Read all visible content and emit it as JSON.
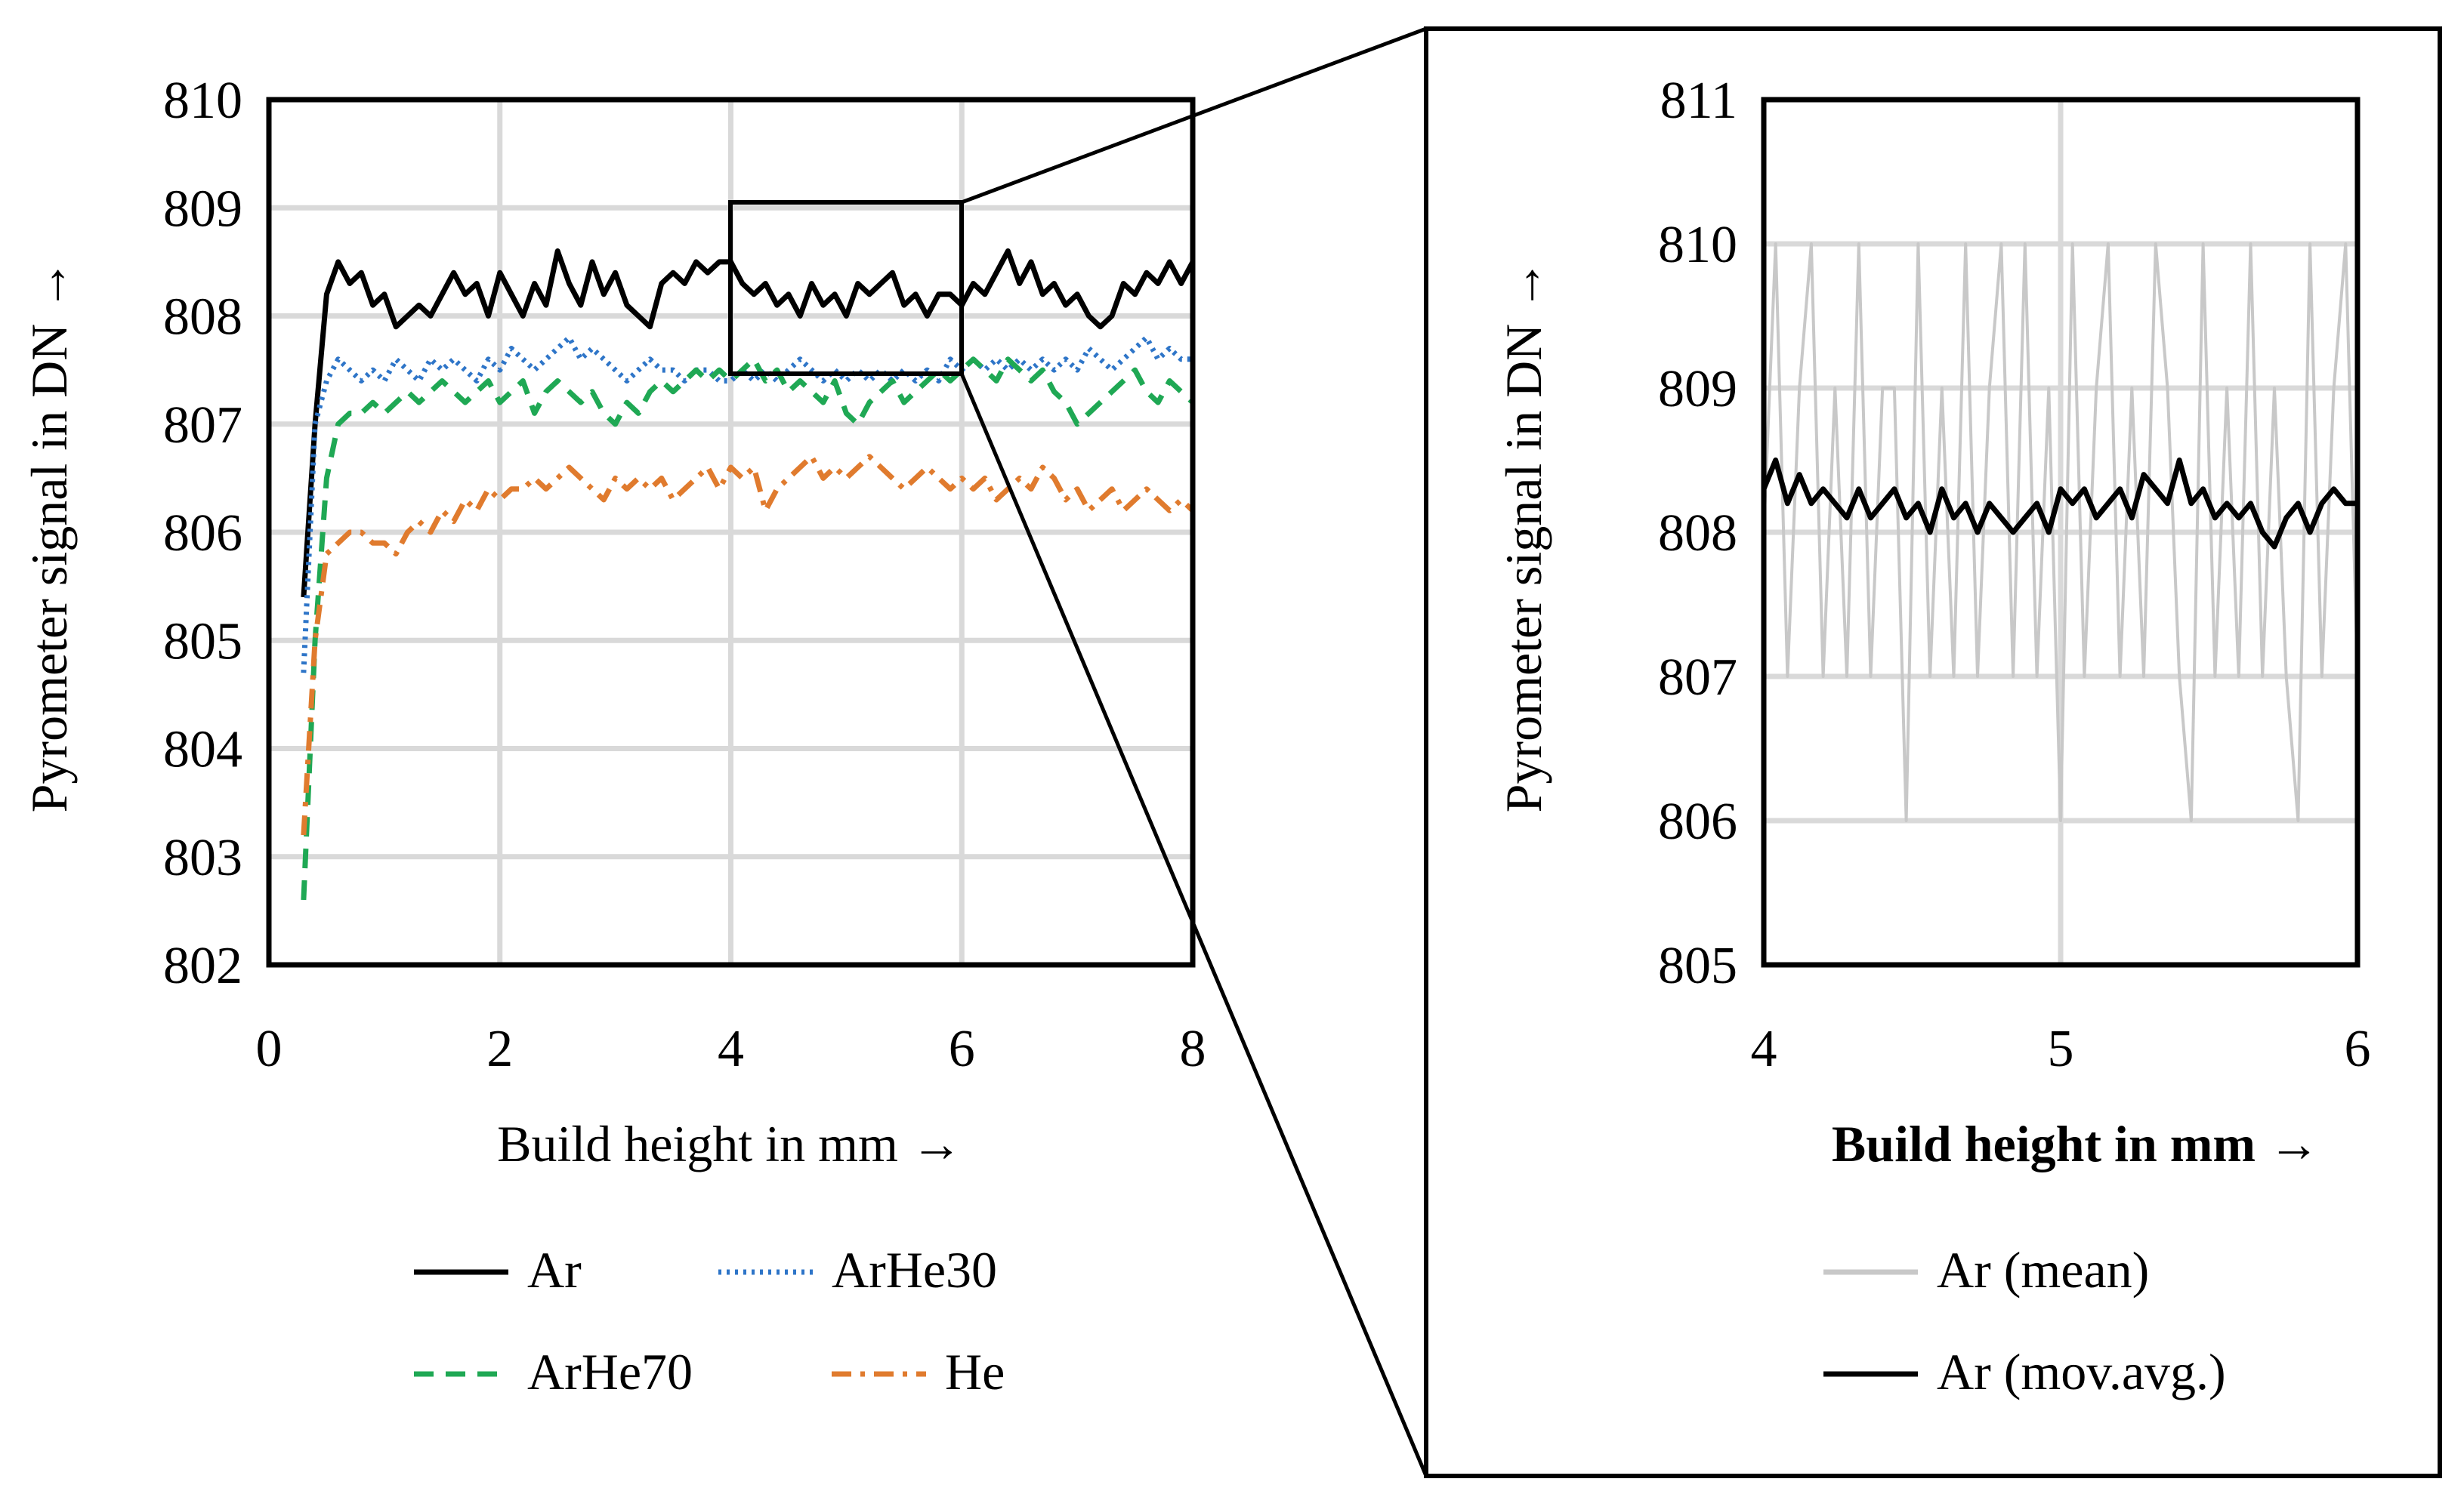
{
  "chart_data": [
    {
      "type": "line",
      "title": "",
      "xlabel": "Build height in mm →",
      "ylabel": "Pyrometer signal in DN →",
      "xlim": [
        0,
        8
      ],
      "ylim": [
        802,
        810
      ],
      "xticks": [
        "0",
        "2",
        "4",
        "6",
        "8"
      ],
      "yticks": [
        "802",
        "803",
        "804",
        "805",
        "806",
        "807",
        "808",
        "809",
        "810"
      ],
      "grid": true,
      "legend_position": "bottom",
      "zoom_region": {
        "x": [
          4,
          6
        ],
        "y": [
          807.5,
          809
        ]
      },
      "series": [
        {
          "name": "Ar",
          "color": "#000000",
          "style": "solid",
          "x_start": 0.3,
          "x_step": 0.1,
          "values": [
            805.4,
            807.0,
            808.2,
            808.5,
            808.3,
            808.4,
            808.1,
            808.2,
            807.9,
            808.0,
            808.1,
            808.0,
            808.2,
            808.4,
            808.2,
            808.3,
            808.0,
            808.4,
            808.2,
            808.0,
            808.3,
            808.1,
            808.6,
            808.3,
            808.1,
            808.5,
            808.2,
            808.4,
            808.1,
            808.0,
            807.9,
            808.3,
            808.4,
            808.3,
            808.5,
            808.4,
            808.5,
            808.5,
            808.3,
            808.2,
            808.3,
            808.1,
            808.2,
            808.0,
            808.3,
            808.1,
            808.2,
            808.0,
            808.3,
            808.2,
            808.3,
            808.4,
            808.1,
            808.2,
            808.0,
            808.2,
            808.2,
            808.1,
            808.3,
            808.2,
            808.4,
            808.6,
            808.3,
            808.5,
            808.2,
            808.3,
            808.1,
            808.2,
            808.0,
            807.9,
            808.0,
            808.3,
            808.2,
            808.4,
            808.3,
            808.5,
            808.3,
            808.5
          ]
        },
        {
          "name": "ArHe30",
          "color": "#2e75c8",
          "style": "dotted",
          "x_start": 0.3,
          "x_step": 0.1,
          "values": [
            804.7,
            807.0,
            807.4,
            807.6,
            807.5,
            807.4,
            807.5,
            807.4,
            807.6,
            807.5,
            807.4,
            807.6,
            807.5,
            807.6,
            807.5,
            807.4,
            807.6,
            807.5,
            807.7,
            807.6,
            807.5,
            807.6,
            807.7,
            807.8,
            807.6,
            807.7,
            807.6,
            807.5,
            807.4,
            807.5,
            807.6,
            807.5,
            807.5,
            807.4,
            807.5,
            807.5,
            807.4,
            807.4,
            807.5,
            807.4,
            807.5,
            807.4,
            807.5,
            807.6,
            807.5,
            807.4,
            807.5,
            807.4,
            807.5,
            807.4,
            807.5,
            807.4,
            807.5,
            807.4,
            807.5,
            807.4,
            807.6,
            807.5,
            807.6,
            807.5,
            807.6,
            807.5,
            807.6,
            807.5,
            807.6,
            807.5,
            807.6,
            807.5,
            807.7,
            807.6,
            807.5,
            807.6,
            807.7,
            807.8,
            807.6,
            807.7,
            807.6,
            807.6
          ]
        },
        {
          "name": "ArHe70",
          "color": "#1fa854",
          "style": "dashed",
          "x_start": 0.3,
          "x_step": 0.1,
          "values": [
            802.6,
            805.0,
            806.5,
            807.0,
            807.1,
            807.1,
            807.2,
            807.1,
            807.2,
            807.3,
            807.2,
            807.3,
            807.4,
            807.3,
            807.2,
            807.3,
            807.4,
            807.2,
            807.3,
            807.4,
            807.1,
            807.3,
            807.4,
            807.3,
            807.2,
            807.3,
            807.1,
            807.0,
            807.2,
            807.1,
            807.3,
            807.4,
            807.3,
            807.4,
            807.5,
            807.4,
            807.5,
            807.4,
            807.5,
            807.6,
            807.4,
            807.5,
            807.3,
            807.4,
            807.3,
            807.2,
            807.4,
            807.1,
            807.0,
            807.2,
            807.3,
            807.4,
            807.2,
            807.3,
            807.4,
            807.5,
            807.4,
            807.5,
            807.6,
            807.5,
            807.4,
            807.6,
            807.5,
            807.4,
            807.5,
            807.3,
            807.2,
            807.0,
            807.1,
            807.2,
            807.3,
            807.4,
            807.5,
            807.3,
            807.2,
            807.4,
            807.3,
            807.2
          ]
        },
        {
          "name": "He",
          "color": "#e07b2e",
          "style": "dash-dot",
          "x_start": 0.3,
          "x_step": 0.1,
          "values": [
            803.2,
            805.0,
            805.8,
            805.9,
            806.0,
            806.0,
            805.9,
            805.9,
            805.8,
            806.0,
            806.1,
            806.0,
            806.2,
            806.1,
            806.3,
            806.2,
            806.4,
            806.3,
            806.4,
            806.4,
            806.5,
            806.4,
            806.5,
            806.6,
            806.5,
            806.4,
            806.3,
            806.5,
            806.4,
            806.5,
            806.4,
            806.5,
            806.3,
            806.4,
            806.5,
            806.6,
            806.4,
            806.6,
            806.5,
            806.6,
            806.2,
            806.4,
            806.5,
            806.6,
            806.7,
            806.5,
            806.6,
            806.5,
            806.6,
            806.7,
            806.6,
            806.5,
            806.4,
            806.5,
            806.6,
            806.5,
            806.4,
            806.5,
            806.4,
            806.5,
            806.3,
            806.4,
            806.5,
            806.4,
            806.6,
            806.5,
            806.3,
            806.4,
            806.2,
            806.3,
            806.4,
            806.2,
            806.3,
            806.4,
            806.3,
            806.2,
            806.3,
            806.2
          ]
        }
      ]
    },
    {
      "type": "line",
      "title": "",
      "xlabel": "Build height in mm →",
      "ylabel": "Pyrometer signal in DN →",
      "xlim": [
        4,
        6
      ],
      "ylim": [
        805,
        811
      ],
      "xticks": [
        "4",
        "5",
        "6"
      ],
      "yticks": [
        "805",
        "806",
        "807",
        "808",
        "809",
        "810",
        "811"
      ],
      "grid": true,
      "legend_position": "bottom",
      "series": [
        {
          "name": "Ar (mean)",
          "color": "#c8c8c8",
          "style": "solid",
          "x_start": 4,
          "x_step": 0.04,
          "values": [
            808,
            810,
            807,
            809,
            810,
            807,
            809,
            807,
            810,
            807,
            809,
            809,
            806,
            810,
            807,
            809,
            807,
            810,
            807,
            809,
            810,
            807,
            810,
            807,
            809,
            806,
            810,
            807,
            809,
            810,
            807,
            809,
            807,
            810,
            809,
            807,
            806,
            810,
            807,
            809,
            807,
            810,
            807,
            809,
            807,
            806,
            810,
            807,
            809,
            810,
            807
          ]
        },
        {
          "name": "Ar (mov.avg.)",
          "color": "#000000",
          "style": "solid",
          "x_start": 4,
          "x_step": 0.04,
          "values": [
            808.3,
            808.5,
            808.2,
            808.4,
            808.2,
            808.3,
            808.2,
            808.1,
            808.3,
            808.1,
            808.2,
            808.3,
            808.1,
            808.2,
            808.0,
            808.3,
            808.1,
            808.2,
            808.0,
            808.2,
            808.1,
            808.0,
            808.1,
            808.2,
            808.0,
            808.3,
            808.2,
            808.3,
            808.1,
            808.2,
            808.3,
            808.1,
            808.4,
            808.3,
            808.2,
            808.5,
            808.2,
            808.3,
            808.1,
            808.2,
            808.1,
            808.2,
            808.0,
            807.9,
            808.1,
            808.2,
            808.0,
            808.2,
            808.3,
            808.2,
            808.2
          ]
        }
      ]
    }
  ]
}
